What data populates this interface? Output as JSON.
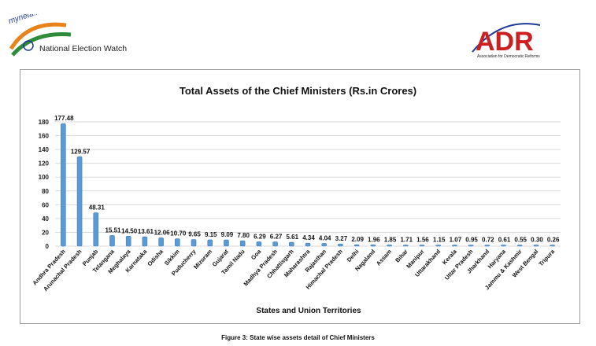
{
  "header": {
    "left_logo_script": "myneta.info",
    "left_logo_text": "National Election Watch",
    "right_logo_text": "ADR",
    "right_logo_subtext": "Association for Democratic Reforms"
  },
  "caption": "Figure 3: State wise assets detail of Chief Ministers",
  "colors": {
    "bar": "#5B9BD5",
    "bar_edge": "#3f7fb8",
    "grid": "#d9d9d9",
    "adr_red": "#cc1f1f",
    "flag_orange": "#e8831b",
    "flag_green": "#2e8b3a"
  },
  "chart_data": {
    "type": "bar",
    "title": "Total Assets of the Chief Ministers (Rs.in Crores)",
    "xlabel": "States and Union Territories",
    "ylabel": "",
    "ylim": [
      0,
      180
    ],
    "yticks": [
      0,
      20,
      40,
      60,
      80,
      100,
      120,
      140,
      160,
      180
    ],
    "grid": true,
    "categories": [
      "Andhra Pradesh",
      "Arunachal Pradesh",
      "Punjab",
      "Telangana",
      "Meghalaya",
      "Karnataka",
      "Odisha",
      "Sikkim",
      "Puducherry",
      "Mizoram",
      "Gujarat",
      "Tamil Nadu",
      "Goa",
      "Madhya Pradesh",
      "Chhattisgarh",
      "Maharashtra",
      "Rajasthan",
      "Himachal Pradesh",
      "Delhi",
      "Nagaland",
      "Assam",
      "Bihar",
      "Manipur",
      "Uttarakhand",
      "Kerala",
      "Uttar Pradesh",
      "Jharkhand",
      "Haryana",
      "Jammu & Kashmir",
      "West Bengal",
      "Tripura"
    ],
    "values": [
      177.48,
      129.57,
      48.31,
      15.51,
      14.5,
      13.61,
      12.06,
      10.7,
      9.65,
      9.15,
      9.09,
      7.8,
      6.29,
      6.27,
      5.61,
      4.34,
      4.04,
      3.27,
      2.09,
      1.96,
      1.85,
      1.71,
      1.56,
      1.15,
      1.07,
      0.95,
      0.72,
      0.61,
      0.55,
      0.3,
      0.26
    ],
    "data_labels": [
      "177.48",
      "129.57",
      "48.31",
      "15.51",
      "14.50",
      "13.61",
      "12.06",
      "10.70",
      "9.65",
      "9.15",
      "9.09",
      "7.80",
      "6.29",
      "6.27",
      "5.61",
      "4.34",
      "4.04",
      "3.27",
      "2.09",
      "1.96",
      "1.85",
      "1.71",
      "1.56",
      "1.15",
      "1.07",
      "0.95",
      "0.72",
      "0.61",
      "0.55",
      "0.30",
      "0.26"
    ]
  }
}
